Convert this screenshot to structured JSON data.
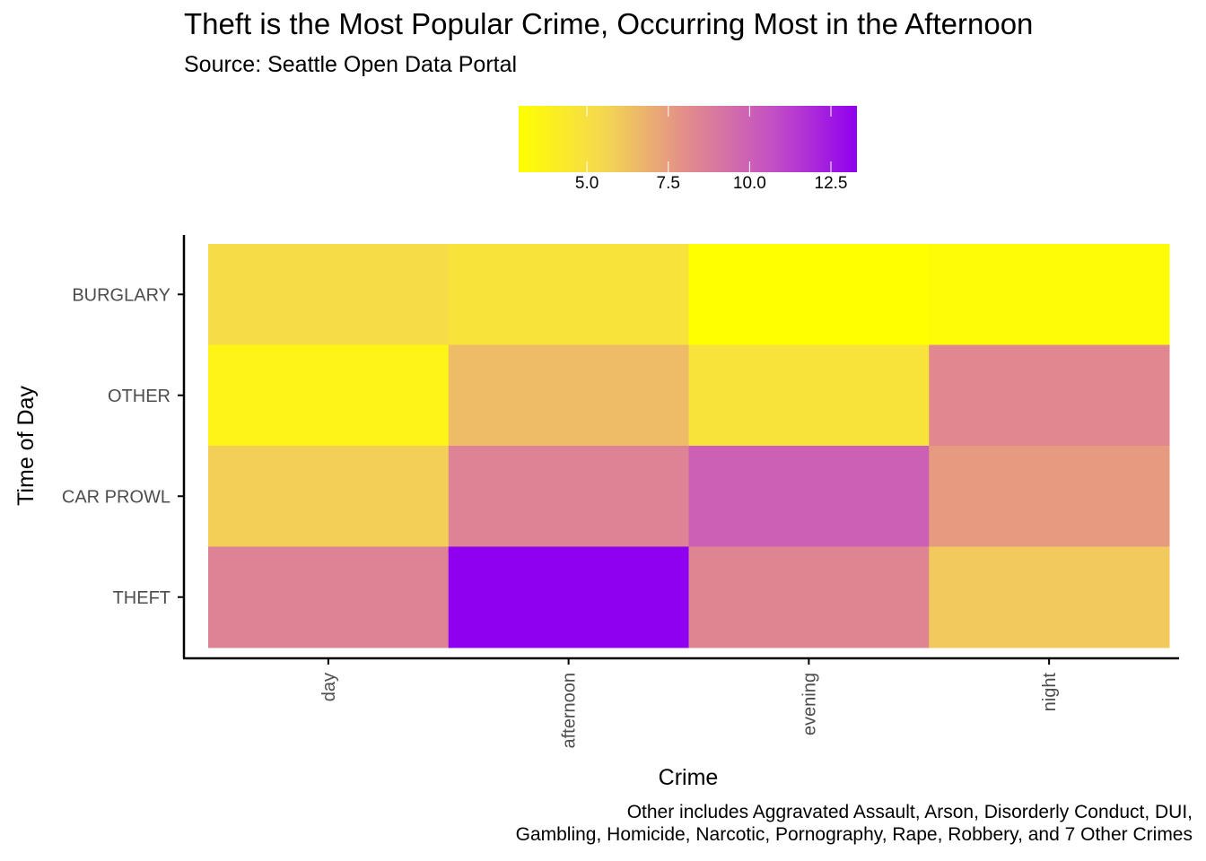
{
  "chart_data": {
    "type": "heatmap",
    "title": "Theft is the Most Popular Crime, Occurring Most in the Afternoon",
    "subtitle": "Source: Seattle Open Data Portal",
    "caption": [
      "Other includes Aggravated Assault, Arson, Disorderly Conduct, DUI,",
      "Gambling, Homicide, Narcotic, Pornography, Rape, Robbery, and 7 Other Crimes"
    ],
    "xlabel": "Crime",
    "ylabel": "Time of Day",
    "x": [
      "day",
      "afternoon",
      "evening",
      "night"
    ],
    "y": [
      "BURGLARY",
      "OTHER",
      "CAR PROWL",
      "THEFT"
    ],
    "values": [
      [
        5.2,
        4.8,
        2.9,
        3.1
      ],
      [
        3.6,
        6.5,
        4.8,
        8.3
      ],
      [
        5.8,
        8.5,
        10.0,
        7.6
      ],
      [
        8.5,
        13.3,
        8.4,
        6.0
      ]
    ],
    "colorscale": {
      "low_color": "#ffff00",
      "high_color": "#8f00f0",
      "min": 2.9,
      "max": 13.3,
      "ticks": [
        "5.0",
        "7.5",
        "10.0",
        "12.5"
      ],
      "tick_values": [
        5.0,
        7.5,
        10.0,
        12.5
      ]
    },
    "legend": "top",
    "grid": false
  }
}
